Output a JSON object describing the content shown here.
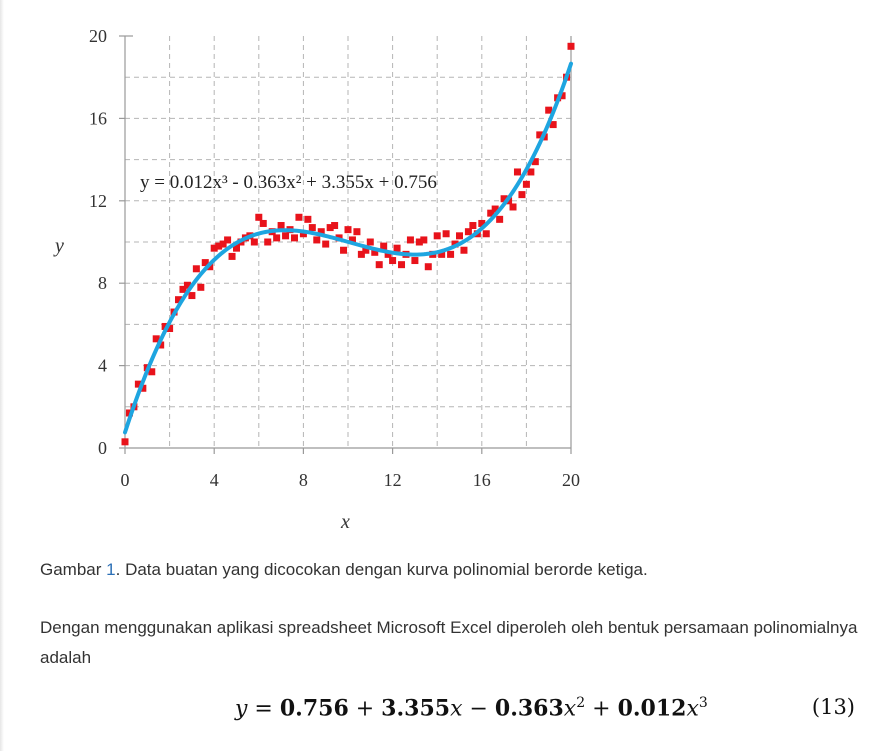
{
  "figure": {
    "xlabel": "x",
    "ylabel": "y",
    "annotation": "y = 0.012x³ - 0.363x² + 3.355x + 0.756"
  },
  "chart_data": {
    "type": "scatter",
    "xlabel": "x",
    "ylabel": "y",
    "xlim": [
      0,
      20
    ],
    "ylim": [
      0,
      20
    ],
    "xticks": [
      0,
      4,
      8,
      12,
      16,
      20
    ],
    "yticks": [
      0,
      4,
      8,
      12,
      16,
      20
    ],
    "grid": true,
    "grid_style": "dashed",
    "fit": {
      "equation": "y = 0.012x³ - 0.363x² + 3.355x + 0.756",
      "coefficients": {
        "c3": 0.012,
        "c2": -0.363,
        "c1": 3.355,
        "c0": 0.756
      },
      "color": "#1ea5e0"
    },
    "marker_color": "#e8131b",
    "curve_color": "#1ea5e0",
    "series": [
      {
        "x": [
          0.0,
          0.2,
          0.4,
          0.6,
          0.8,
          1.0,
          1.2,
          1.4,
          1.6,
          1.8,
          2.0,
          2.2,
          2.4,
          2.6,
          2.8,
          3.0,
          3.2,
          3.4,
          3.6,
          3.8,
          4.0,
          4.2,
          4.4,
          4.6,
          4.8,
          5.0,
          5.2,
          5.4,
          5.6,
          5.8,
          6.0,
          6.2,
          6.4,
          6.6,
          6.8,
          7.0,
          7.2,
          7.4,
          7.6,
          7.8,
          8.0,
          8.2,
          8.4,
          8.6,
          8.8,
          9.0,
          9.2,
          9.4,
          9.6,
          9.8,
          10.0,
          10.2,
          10.4,
          10.6,
          10.8,
          11.0,
          11.2,
          11.4,
          11.6,
          11.8,
          12.0,
          12.2,
          12.4,
          12.6,
          12.8,
          13.0,
          13.2,
          13.4,
          13.6,
          13.8,
          14.0,
          14.2,
          14.4,
          14.6,
          14.8,
          15.0,
          15.2,
          15.4,
          15.6,
          15.8,
          16.0,
          16.2,
          16.4,
          16.6,
          16.8,
          17.0,
          17.2,
          17.4,
          17.6,
          17.8,
          18.0,
          18.2,
          18.4,
          18.6,
          18.8,
          19.0,
          19.2,
          19.4,
          19.6,
          19.8,
          20.0
        ],
        "y": [
          0.3,
          1.7,
          2.0,
          3.1,
          2.9,
          3.9,
          3.7,
          5.3,
          5.0,
          5.9,
          5.8,
          6.6,
          7.2,
          7.7,
          7.9,
          7.4,
          8.7,
          7.8,
          9.0,
          8.8,
          9.7,
          9.8,
          9.9,
          10.1,
          9.3,
          9.7,
          10.0,
          10.2,
          10.3,
          10.0,
          11.2,
          10.9,
          10.0,
          10.5,
          10.2,
          10.8,
          10.3,
          10.6,
          10.2,
          11.2,
          10.4,
          11.1,
          10.7,
          10.1,
          10.5,
          9.9,
          10.7,
          10.8,
          10.2,
          9.6,
          10.6,
          10.1,
          10.5,
          9.4,
          9.6,
          10.0,
          9.5,
          8.9,
          9.8,
          9.4,
          9.1,
          9.7,
          8.9,
          9.4,
          10.1,
          9.1,
          10.0,
          10.1,
          8.8,
          9.4,
          10.3,
          9.4,
          10.4,
          9.4,
          9.9,
          10.3,
          9.6,
          10.5,
          10.8,
          10.4,
          10.9,
          10.4,
          11.4,
          11.6,
          11.1,
          12.1,
          12.0,
          11.7,
          13.4,
          12.3,
          12.8,
          13.4,
          13.9,
          15.2,
          15.1,
          16.4,
          15.7,
          17.0,
          17.1,
          18.0,
          19.5
        ]
      }
    ]
  },
  "caption": {
    "prefix": "Gambar",
    "number": "1",
    "text": ". Data buatan yang dicocokan dengan kurva polinomial berorde ketiga."
  },
  "paragraph": "Dengan menggunakan aplikasi spreadsheet Microsoft Excel diperoleh oleh bentuk persamaan polinomialnya adalah",
  "equation": {
    "lhs": "y",
    "c0": "0.756",
    "c1": "3.355",
    "c2": "0.363",
    "c3": "0.012",
    "x": "x",
    "exp2": "2",
    "exp3": "3",
    "number": "(13)"
  }
}
